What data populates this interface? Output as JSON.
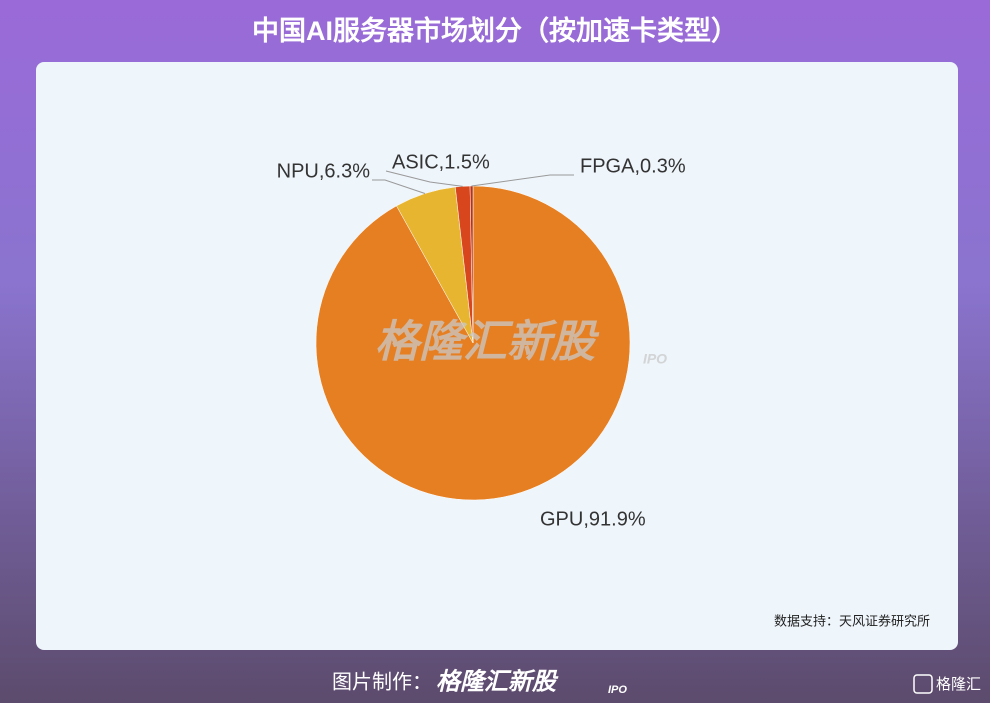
{
  "title": "中国AI服务器市场划分（按加速卡类型）",
  "chart_data": {
    "type": "pie",
    "categories": [
      "GPU",
      "NPU",
      "ASIC",
      "FPGA"
    ],
    "values": [
      91.9,
      6.3,
      1.5,
      0.3
    ],
    "value_labels": [
      "GPU,91.9%",
      "NPU,6.3%",
      "ASIC,1.5%",
      "FPGA,0.3%"
    ],
    "colors": [
      "#e67f22",
      "#e8b530",
      "#d8461d",
      "#b8321a"
    ]
  },
  "source": "数据支持：天风证券研究所",
  "watermark": {
    "brand": "格隆汇新股",
    "suffix": "IPO"
  },
  "footer": {
    "credit": "图片制作：",
    "brand": "格隆汇新股",
    "suffix": "IPO",
    "logo": "格隆汇"
  }
}
